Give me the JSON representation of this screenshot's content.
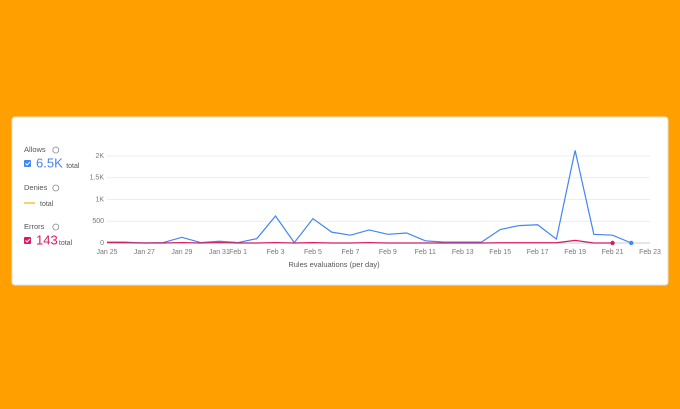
{
  "chart_data": {
    "type": "line",
    "x_axis_label": "Rules evaluations (per day)",
    "categories": [
      "Jan 25",
      null,
      "Jan 27",
      null,
      "Jan 29",
      null,
      "Jan 31",
      "Feb 1",
      null,
      "Feb 3",
      null,
      "Feb 5",
      null,
      "Feb 7",
      null,
      "Feb 9",
      null,
      "Feb 11",
      null,
      "Feb 13",
      null,
      "Feb 15",
      null,
      "Feb 17",
      null,
      "Feb 19",
      null,
      "Feb 21",
      null,
      "Feb 23"
    ],
    "ylim": [
      0,
      2000
    ],
    "yticks": [
      0,
      {
        "value": 500,
        "label": "500"
      },
      {
        "value": 1000,
        "label": "1K"
      },
      {
        "value": 1500,
        "label": "1.5K"
      },
      {
        "value": 2000,
        "label": "2K"
      }
    ],
    "grid": true,
    "total_word": "total",
    "series": [
      {
        "name": "Allows",
        "color": "#4285f4",
        "total_label": "6.5K",
        "checkbox": true,
        "values": [
          20,
          20,
          0,
          10,
          130,
          10,
          40,
          10,
          100,
          620,
          10,
          560,
          250,
          180,
          300,
          200,
          230,
          50,
          20,
          20,
          20,
          310,
          400,
          420,
          90,
          2130,
          200,
          180,
          0,
          null
        ]
      },
      {
        "name": "Denies",
        "color": "#f4b400",
        "checkbox": false,
        "values": [
          null,
          null,
          null,
          null,
          null,
          null,
          null,
          null,
          null,
          null,
          null,
          null,
          null,
          null,
          null,
          null,
          null,
          null,
          null,
          null,
          null,
          null,
          null,
          null,
          null,
          null,
          null,
          null,
          null,
          null
        ]
      },
      {
        "name": "Errors",
        "color": "#d81b60",
        "total_label": "143",
        "checkbox": true,
        "values": [
          10,
          5,
          0,
          0,
          10,
          0,
          10,
          0,
          0,
          10,
          0,
          8,
          0,
          0,
          10,
          0,
          0,
          0,
          0,
          0,
          0,
          5,
          5,
          5,
          5,
          60,
          0,
          0,
          null,
          null
        ]
      }
    ]
  }
}
